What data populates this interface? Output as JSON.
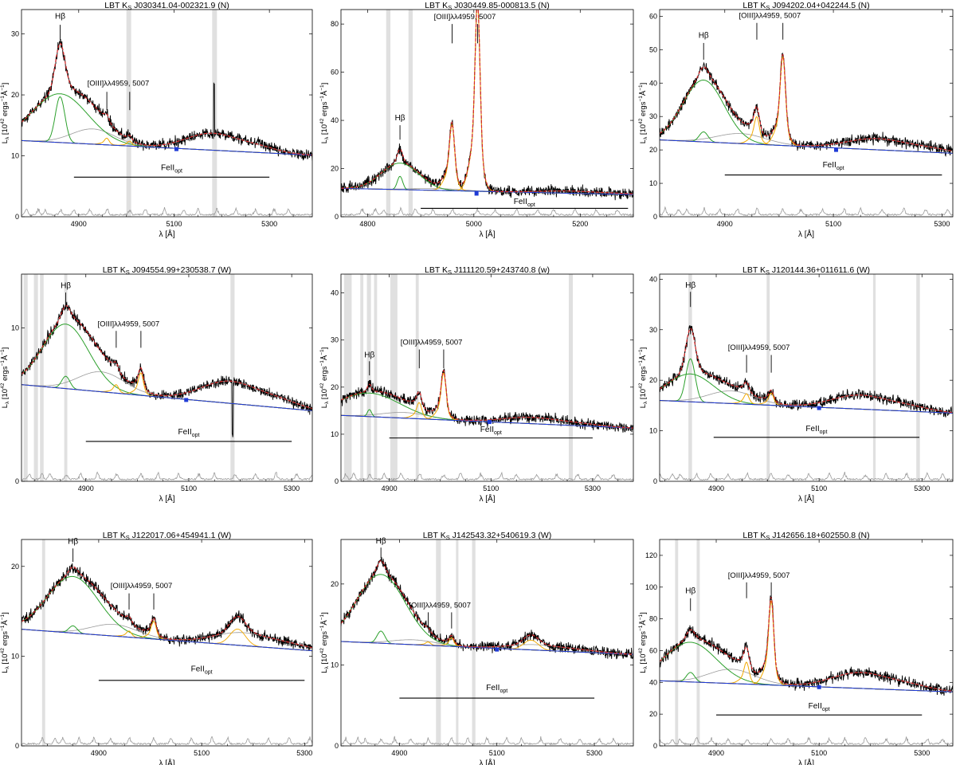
{
  "figure": {
    "colors": {
      "data": "#000000",
      "model": "#d62728",
      "continuum": "#1f3bd6",
      "broad_hb": "#2ca02c",
      "oiii": "#f2a900",
      "feii": "#9a9a9a",
      "residual": "#9a9a9a",
      "masked": "#e0e0e0",
      "frame": "#000000"
    },
    "xlabel": "λ [Å]",
    "ylabel_main": "L",
    "ylabel_sub": "λ",
    "ylabel_rest": " [10",
    "ylabel_exp": "42",
    "ylabel_units": " ergs",
    "ylabel_exp2": "−1",
    "ylabel_units2": "Å",
    "ylabel_exp3": "−1",
    "ylabel_close": "]",
    "hb_label": "Hβ",
    "oiii_label": "[OIII]λλ4959, 5007",
    "feii_main": "FeII",
    "feii_sub": "opt"
  },
  "chart_data": [
    {
      "type": "line",
      "title_pre": "LBT K",
      "title_sub": "S",
      "title_post": " J030341.04-002321.9 (N)",
      "xlim": [
        4780,
        5390
      ],
      "ylim": [
        0,
        34
      ],
      "xticks": [
        4900,
        5100,
        5300
      ],
      "yticks": [
        0,
        10,
        20,
        30
      ],
      "cont": [
        12.5,
        10.1
      ],
      "hb": {
        "x": 4861,
        "broad": [
          8,
          58
        ],
        "narrow": [
          7.5,
          10
        ]
      },
      "oiii": [
        0.8,
        0.6
      ],
      "feii_amp": 2.5,
      "extra": [],
      "masked": [
        [
          5000,
          5010
        ],
        [
          5180,
          5190
        ]
      ],
      "spike": [
        5184,
        8
      ],
      "marker": [
        5105,
        11.1
      ],
      "feii_bar": [
        4890,
        5300,
        6.5
      ],
      "hb_tick": [
        4861,
        29,
        31.5
      ],
      "hb_label_y": 32.5,
      "oiii_ticks": [
        [
          4959,
          17.5,
          20.5
        ],
        [
          5007,
          17.5,
          20.5
        ]
      ],
      "oiii_label_y": 21.5,
      "feii_label_y": 7.5
    },
    {
      "type": "line",
      "title_pre": "LBT K",
      "title_sub": "S",
      "title_post": " J030449.85-000813.5 (N)",
      "xlim": [
        4750,
        5300
      ],
      "ylim": [
        0,
        86
      ],
      "xticks": [
        4800,
        5000,
        5200
      ],
      "yticks": [
        0,
        20,
        40,
        60,
        80
      ],
      "cont": [
        11.8,
        9.2
      ],
      "hb": {
        "x": 4861,
        "broad": [
          11,
          35
        ],
        "narrow": [
          5.5,
          5
        ]
      },
      "oiii": [
        20,
        59
      ],
      "feii_amp": 0.8,
      "extra": [],
      "masked": [
        [
          4835,
          4843
        ],
        [
          4877,
          4885
        ]
      ],
      "spike": null,
      "marker": [
        5005,
        9.6
      ],
      "feii_bar": [
        4900,
        5290,
        3.5
      ],
      "hb_tick": [
        4861,
        32,
        38
      ],
      "hb_label_y": 40,
      "oiii_ticks": [
        [
          4959,
          72,
          80
        ],
        [
          5007,
          72,
          80
        ]
      ],
      "oiii_label_y": 82,
      "feii_label_y": 5
    },
    {
      "type": "line",
      "title_pre": "LBT K",
      "title_sub": "S",
      "title_post": " J094202.04+042244.5 (N)",
      "xlim": [
        4780,
        5320
      ],
      "ylim": [
        0,
        62
      ],
      "xticks": [
        4900,
        5100,
        5300
      ],
      "yticks": [
        0,
        10,
        20,
        30,
        40,
        50,
        60
      ],
      "cont": [
        23,
        19
      ],
      "hb": {
        "x": 4861,
        "broad": [
          18.5,
          38
        ],
        "narrow": [
          3,
          8
        ]
      },
      "oiii": [
        6,
        20
      ],
      "feii_amp": 3,
      "extra": [],
      "masked": [],
      "spike": null,
      "marker": [
        5105,
        20
      ],
      "feii_bar": [
        4900,
        5300,
        12.5
      ],
      "hb_tick": [
        4861,
        47,
        52
      ],
      "hb_label_y": 53.5,
      "oiii_ticks": [
        [
          4959,
          53,
          58
        ],
        [
          5007,
          53,
          58
        ]
      ],
      "oiii_label_y": 59.5,
      "feii_label_y": 14.5
    },
    {
      "type": "line",
      "title_pre": "LBT K",
      "title_sub": "S",
      "title_post": " J094554.99+230538.7 (W)",
      "xlim": [
        4775,
        5340
      ],
      "ylim": [
        0,
        13.5
      ],
      "xticks": [
        4900,
        5100,
        5300
      ],
      "yticks": [
        0,
        10
      ],
      "cont": [
        6.3,
        4.6
      ],
      "hb": {
        "x": 4861,
        "broad": [
          4.2,
          45
        ],
        "narrow": [
          0.8,
          8
        ]
      },
      "oiii": [
        0.4,
        1.1
      ],
      "feii_amp": 1.3,
      "extra": [],
      "masked": [
        [
          4779,
          4787
        ],
        [
          4799,
          4807
        ],
        [
          4811,
          4818
        ],
        [
          4858,
          4864
        ],
        [
          5181,
          5189
        ]
      ],
      "spike": [
        5185,
        -3.5
      ],
      "marker": [
        5095,
        5.3
      ],
      "feii_bar": [
        4900,
        5300,
        2.6
      ],
      "hb_tick": [
        4861,
        11.2,
        12.3
      ],
      "hb_label_y": 12.6,
      "oiii_ticks": [
        [
          4959,
          8.7,
          9.8
        ],
        [
          5007,
          8.7,
          9.8
        ]
      ],
      "oiii_label_y": 10.1,
      "feii_label_y": 3.0
    },
    {
      "type": "line",
      "title_pre": "LBT K",
      "title_sub": "S",
      "title_post": " J111120.59+243740.8 (w)",
      "xlim": [
        4805,
        5380
      ],
      "ylim": [
        0,
        44
      ],
      "xticks": [
        4900,
        5100,
        5300
      ],
      "yticks": [
        0,
        10,
        20,
        30,
        40
      ],
      "cont": [
        14,
        11.3
      ],
      "hb": {
        "x": 4861,
        "broad": [
          5,
          60
        ],
        "narrow": [
          1.5,
          4
        ]
      },
      "oiii": [
        2.5,
        7.5
      ],
      "feii_amp": 1.2,
      "extra": [],
      "masked": [
        [
          4811,
          4826
        ],
        [
          4843,
          4849
        ],
        [
          4856,
          4864
        ],
        [
          4870,
          4876
        ],
        [
          4902,
          4916
        ],
        [
          4952,
          4958
        ],
        [
          5253,
          5261
        ]
      ],
      "spike": null,
      "marker": [
        5097,
        12.6
      ],
      "feii_bar": [
        4900,
        5300,
        9.2
      ],
      "hb_tick": [
        4861,
        22.5,
        25.5
      ],
      "hb_label_y": 26.3,
      "oiii_ticks": [
        [
          4959,
          24,
          28
        ],
        [
          5007,
          24,
          28
        ]
      ],
      "oiii_label_y": 29.0,
      "feii_label_y": 10.3
    },
    {
      "type": "line",
      "title_pre": "LBT K",
      "title_sub": "S",
      "title_post": " J120144.36+011611.6 (W)",
      "xlim": [
        4790,
        5360
      ],
      "ylim": [
        0,
        41
      ],
      "xticks": [
        4900,
        5100,
        5300
      ],
      "yticks": [
        0,
        10,
        20,
        30,
        40
      ],
      "cont": [
        16,
        13.5
      ],
      "hb": {
        "x": 4850,
        "broad": [
          5.5,
          45
        ],
        "narrow": [
          8.5,
          9
        ]
      },
      "oiii": [
        1.5,
        1.8
      ],
      "feii_amp": 2.5,
      "extra": [],
      "masked": [
        [
          4846,
          4853
        ],
        [
          4998,
          5004
        ],
        [
          5205,
          5210
        ],
        [
          5289,
          5296
        ]
      ],
      "spike": null,
      "marker": [
        5100,
        14.5
      ],
      "feii_bar": [
        4895,
        5295,
        8.7
      ],
      "hb_tick": [
        4850,
        34.5,
        37.5
      ],
      "hb_label_y": 38.3,
      "oiii_ticks": [
        [
          4959,
          21.5,
          25
        ],
        [
          5007,
          21.5,
          25
        ]
      ],
      "oiii_label_y": 26,
      "feii_label_y": 9.8
    },
    {
      "type": "line",
      "title_pre": "LBT K",
      "title_sub": "S",
      "title_post": " J122017.06+454941.1 (W)",
      "xlim": [
        4750,
        5315
      ],
      "ylim": [
        0,
        23
      ],
      "xticks": [
        4900,
        5100,
        5300
      ],
      "yticks": [
        0,
        10,
        20
      ],
      "cont": [
        13,
        10.6
      ],
      "hb": {
        "x": 4850,
        "broad": [
          6.3,
          50
        ],
        "narrow": [
          0.8,
          8
        ]
      },
      "oiii": [
        0.5,
        1.5
      ],
      "feii_amp": 1.3,
      "extra": [
        [
          5170,
          1.8,
          15
        ]
      ],
      "masked": [
        [
          4790,
          4796
        ]
      ],
      "spike": null,
      "marker": null,
      "feii_bar": [
        4900,
        5300,
        7.3
      ],
      "hb_tick": [
        4850,
        20.5,
        22
      ],
      "hb_label_y": 22.5,
      "oiii_ticks": [
        [
          4959,
          15.2,
          17
        ],
        [
          5007,
          15.2,
          17
        ]
      ],
      "oiii_label_y": 17.6,
      "feii_label_y": 8.2
    },
    {
      "type": "line",
      "title_pre": "LBT K",
      "title_sub": "S",
      "title_post": " J142543.32+540619.3 (W)",
      "xlim": [
        4780,
        5380
      ],
      "ylim": [
        0,
        25.5
      ],
      "xticks": [
        4900,
        5100,
        5300
      ],
      "yticks": [
        0,
        10,
        20
      ],
      "cont": [
        12.9,
        11.3
      ],
      "hb": {
        "x": 4862,
        "broad": [
          8.5,
          50
        ],
        "narrow": [
          1.5,
          8
        ]
      },
      "oiii": [
        0.3,
        0.8
      ],
      "feii_amp": 0.6,
      "extra": [
        [
          5170,
          1.2,
          15
        ]
      ],
      "masked": [
        [
          4975,
          4985
        ],
        [
          5016,
          5021
        ],
        [
          5049,
          5056
        ]
      ],
      "spike": null,
      "marker": [
        5100,
        11.9
      ],
      "feii_bar": [
        4900,
        5300,
        5.9
      ],
      "hb_tick": [
        4862,
        23.2,
        24.5
      ],
      "hb_label_y": 25,
      "oiii_ticks": [
        [
          4959,
          14.5,
          16.5
        ],
        [
          5007,
          14.5,
          16.5
        ]
      ],
      "oiii_label_y": 17.1,
      "feii_label_y": 6.8
    },
    {
      "type": "line",
      "title_pre": "LBT K",
      "title_sub": "S",
      "title_post": " J142656.18+602550.8 (N)",
      "xlim": [
        4790,
        5360
      ],
      "ylim": [
        0,
        130
      ],
      "xticks": [
        4900,
        5100,
        5300
      ],
      "yticks": [
        0,
        20,
        40,
        60,
        80,
        100,
        120
      ],
      "cont": [
        41,
        34
      ],
      "hb": {
        "x": 4850,
        "broad": [
          25,
          50
        ],
        "narrow": [
          6,
          8
        ]
      },
      "oiii": [
        10,
        40
      ],
      "feii_amp": 9,
      "extra": [],
      "masked": [
        [
          4820,
          4826
        ],
        [
          4862,
          4868
        ]
      ],
      "spike": null,
      "marker": [
        5100,
        37
      ],
      "feii_bar": [
        4900,
        5300,
        19.5
      ],
      "hb_tick": [
        4850,
        85,
        93
      ],
      "hb_label_y": 96,
      "oiii_ticks": [
        [
          4959,
          93,
          103
        ],
        [
          5007,
          93,
          103
        ]
      ],
      "oiii_label_y": 106,
      "feii_label_y": 23
    }
  ]
}
